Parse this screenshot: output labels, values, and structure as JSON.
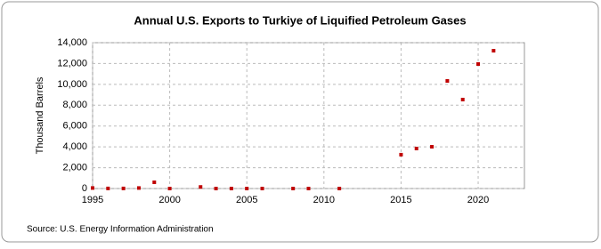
{
  "chart_data": {
    "type": "scatter",
    "title": "Annual U.S. Exports to Turkiye of Liquified Petroleum Gases",
    "y_label": "Thousand Barrels",
    "source": "Source: U.S. Energy Information Administration",
    "x": [
      1995,
      1996,
      1997,
      1998,
      1999,
      2000,
      2002,
      2003,
      2004,
      2005,
      2006,
      2008,
      2009,
      2011,
      2015,
      2016,
      2017,
      2018,
      2019,
      2020,
      2021
    ],
    "values": [
      50,
      10,
      10,
      50,
      600,
      0,
      150,
      0,
      0,
      0,
      0,
      0,
      0,
      0,
      3250,
      3840,
      4010,
      10330,
      8540,
      11950,
      13230
    ],
    "color": "#c00000",
    "xlim": [
      1995,
      2023
    ],
    "xticks": [
      1995,
      2000,
      2005,
      2010,
      2015,
      2020
    ],
    "ylim": [
      0,
      14000
    ],
    "yticks": [
      0,
      {
        "value": 2000,
        "label": "2,000"
      },
      {
        "value": 4000,
        "label": "4,000"
      },
      {
        "value": 6000,
        "label": "6,000"
      },
      {
        "value": 8000,
        "label": "8,000"
      },
      {
        "value": 10000,
        "label": "10,000"
      },
      {
        "value": 12000,
        "label": "12,000"
      },
      {
        "value": 14000,
        "label": "14,000"
      }
    ],
    "grid": true
  }
}
